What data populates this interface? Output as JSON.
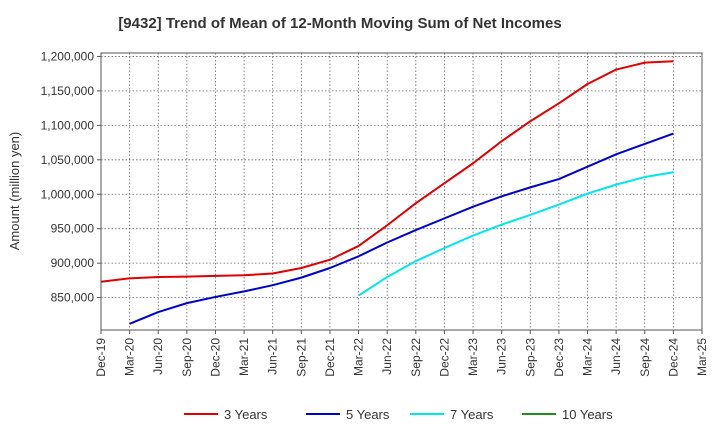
{
  "chart_data": {
    "type": "line",
    "title": "[9432]  Trend of Mean of 12-Month Moving Sum of Net Incomes",
    "ylabel": "Amount (million yen)",
    "xlabel": "",
    "x_ticks": [
      "Dec-19",
      "Mar-20",
      "Jun-20",
      "Sep-20",
      "Dec-20",
      "Mar-21",
      "Jun-21",
      "Sep-21",
      "Dec-21",
      "Mar-22",
      "Jun-22",
      "Sep-22",
      "Dec-22",
      "Mar-23",
      "Jun-23",
      "Sep-23",
      "Dec-23",
      "Mar-24",
      "Jun-24",
      "Sep-24",
      "Dec-24",
      "Mar-25"
    ],
    "y_ticks": [
      "850,000",
      "900,000",
      "950,000",
      "1,000,000",
      "1,050,000",
      "1,100,000",
      "1,150,000",
      "1,200,000"
    ],
    "y_tick_values": [
      850000,
      900000,
      950000,
      1000000,
      1050000,
      1100000,
      1150000,
      1200000
    ],
    "ylim": [
      803000,
      1205000
    ],
    "grid": true,
    "legend_position": "bottom",
    "series": [
      {
        "name": "3 Years",
        "color": "#e00000",
        "values": [
          [
            "Dec-19",
            873000
          ],
          [
            "Mar-20",
            878000
          ],
          [
            "Jun-20",
            880000
          ],
          [
            "Sep-20",
            880500
          ],
          [
            "Dec-20",
            881500
          ],
          [
            "Mar-21",
            882500
          ],
          [
            "Jun-21",
            885000
          ],
          [
            "Sep-21",
            893000
          ],
          [
            "Dec-21",
            905000
          ],
          [
            "Mar-22",
            925000
          ],
          [
            "Jun-22",
            955000
          ],
          [
            "Sep-22",
            987000
          ],
          [
            "Dec-22",
            1016000
          ],
          [
            "Mar-23",
            1045000
          ],
          [
            "Jun-23",
            1077000
          ],
          [
            "Sep-23",
            1106000
          ],
          [
            "Dec-23",
            1132000
          ],
          [
            "Mar-24",
            1160000
          ],
          [
            "Jun-24",
            1181000
          ],
          [
            "Sep-24",
            1191000
          ],
          [
            "Dec-24",
            1193000
          ]
        ]
      },
      {
        "name": "5 Years",
        "color": "#0000cc",
        "values": [
          [
            "Mar-20",
            812000
          ],
          [
            "Jun-20",
            829000
          ],
          [
            "Sep-20",
            842000
          ],
          [
            "Dec-20",
            851000
          ],
          [
            "Mar-21",
            859000
          ],
          [
            "Jun-21",
            868000
          ],
          [
            "Sep-21",
            879000
          ],
          [
            "Dec-21",
            893000
          ],
          [
            "Mar-22",
            910000
          ],
          [
            "Jun-22",
            930000
          ],
          [
            "Sep-22",
            948000
          ],
          [
            "Dec-22",
            965000
          ],
          [
            "Mar-23",
            982000
          ],
          [
            "Jun-23",
            997000
          ],
          [
            "Sep-23",
            1010000
          ],
          [
            "Dec-23",
            1022000
          ],
          [
            "Mar-24",
            1040000
          ],
          [
            "Jun-24",
            1058000
          ],
          [
            "Sep-24",
            1073000
          ],
          [
            "Dec-24",
            1088000
          ]
        ]
      },
      {
        "name": "7 Years",
        "color": "#00e5ee",
        "values": [
          [
            "Mar-22",
            853000
          ],
          [
            "Jun-22",
            880000
          ],
          [
            "Sep-22",
            903000
          ],
          [
            "Dec-22",
            922000
          ],
          [
            "Mar-23",
            940000
          ],
          [
            "Jun-23",
            956000
          ],
          [
            "Sep-23",
            970000
          ],
          [
            "Dec-23",
            985000
          ],
          [
            "Mar-24",
            1001000
          ],
          [
            "Jun-24",
            1014000
          ],
          [
            "Sep-24",
            1025000
          ],
          [
            "Dec-24",
            1032000
          ]
        ]
      },
      {
        "name": "10 Years",
        "color": "#228b22",
        "values": []
      }
    ]
  }
}
